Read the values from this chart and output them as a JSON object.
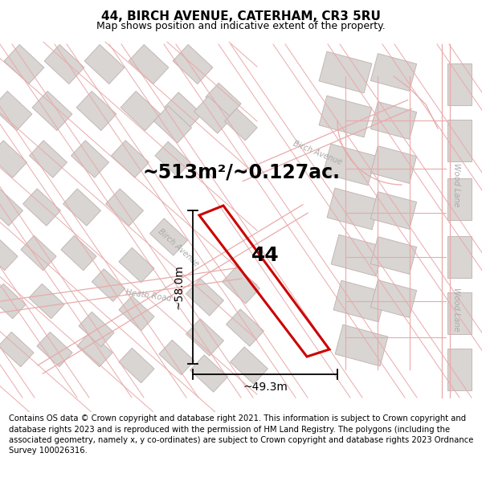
{
  "title": "44, BIRCH AVENUE, CATERHAM, CR3 5RU",
  "subtitle": "Map shows position and indicative extent of the property.",
  "area_text": "~513m²/~0.127ac.",
  "number_label": "44",
  "dim_height": "~58.0m",
  "dim_width": "~49.3m",
  "footer": "Contains OS data © Crown copyright and database right 2021. This information is subject to Crown copyright and database rights 2023 and is reproduced with the permission of HM Land Registry. The polygons (including the associated geometry, namely x, y co-ordinates) are subject to Crown copyright and database rights 2023 Ordnance Survey 100026316.",
  "map_bg": "#ffffff",
  "road_line_color": "#e8aaaa",
  "building_fill": "#d8d5d2",
  "building_edge": "#c0b0b0",
  "parcel_color": "#cc0000",
  "dim_color": "#000000",
  "title_fontsize": 11,
  "subtitle_fontsize": 9,
  "area_fontsize": 17,
  "number_fontsize": 18,
  "dim_fontsize": 10,
  "footer_fontsize": 7.2,
  "road_label_color": "#aaaaaa",
  "road_label_size": 7
}
